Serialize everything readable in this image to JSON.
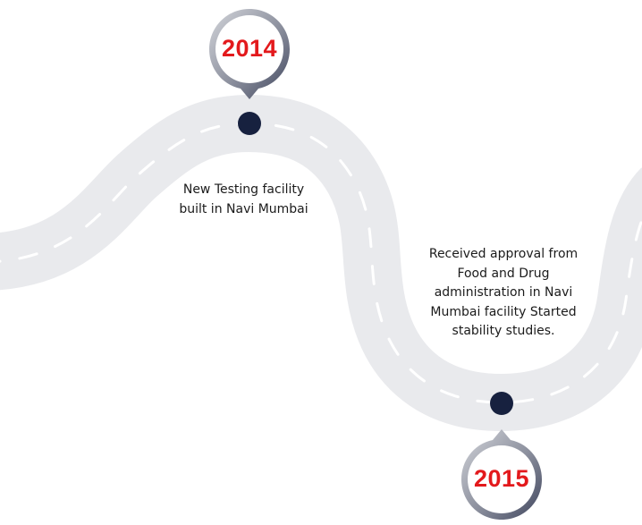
{
  "timeline": {
    "milestones": [
      {
        "year": "2014",
        "text": "New Testing facility built in Navi Mumbai"
      },
      {
        "year": "2015",
        "text": "Received approval from Food and Drug administration in Navi Mumbai facility Started stability studies."
      }
    ],
    "colors": {
      "road": "#e9eaed",
      "road_dash": "#ffffff",
      "dot": "#17213f",
      "year_text": "#e3191c",
      "pin_ring_light": "#c9cbd1",
      "pin_ring_dark": "#4a5068",
      "body_text": "#1b1b1b"
    }
  }
}
